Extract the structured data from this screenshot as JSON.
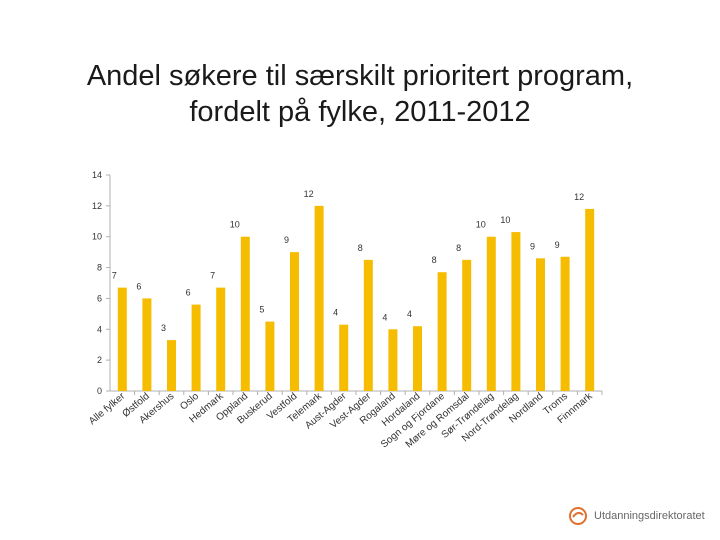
{
  "slide": {
    "title": "Andel søkere til særskilt prioritert program, fordelt på fylke, 2011-2012",
    "logo_text": "Utdanningsdirektoratet"
  },
  "colors": {
    "bar": "#F5BC00",
    "axis": "#B0B0B0",
    "text": "#333333",
    "logo": "#E07030"
  },
  "chart_data": {
    "type": "bar",
    "title": "",
    "xlabel": "",
    "ylabel": "",
    "ylim": [
      0,
      14
    ],
    "yticks": [
      0,
      2,
      4,
      6,
      8,
      10,
      12,
      14
    ],
    "grid": false,
    "legend": "none",
    "categories": [
      "Alle fylker",
      "Østfold",
      "Akershus",
      "Oslo",
      "Hedmark",
      "Oppland",
      "Buskerud",
      "Vestfold",
      "Telemark",
      "Aust-Agder",
      "Vest-Agder",
      "Rogaland",
      "Hordaland",
      "Sogn og Fjordane",
      "Møre og Romsdal",
      "Sør-Trøndelag",
      "Nord-Trøndelag",
      "Nordland",
      "Troms",
      "Finnmark"
    ],
    "values": [
      6.7,
      6,
      3.3,
      5.6,
      6.7,
      10,
      4.5,
      9,
      12,
      4.3,
      8.5,
      4,
      4.2,
      7.7,
      8.5,
      10,
      10.3,
      8.6,
      8.7,
      11.8
    ],
    "data_labels": [
      "7",
      "6",
      "3",
      "6",
      "7",
      "10",
      "5",
      "9",
      "12",
      "4",
      "8",
      "4",
      "4",
      "8",
      "8",
      "10",
      "10",
      "9",
      "9",
      "12"
    ]
  }
}
